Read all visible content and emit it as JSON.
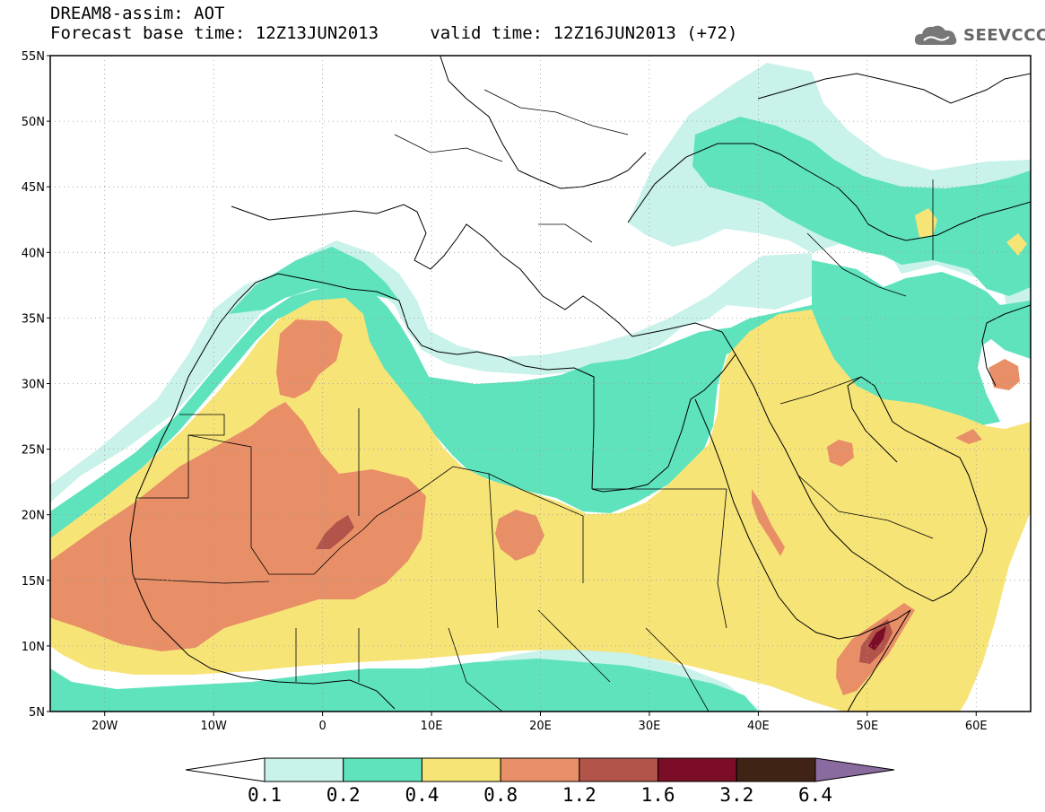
{
  "header": {
    "model_title": "DREAM8-assim: AOT",
    "base_time": "Forecast base time: 12Z13JUN2013",
    "valid_time": "valid time: 12Z16JUN2013 (+72)"
  },
  "logo": {
    "text": "SEEVCCC",
    "icon": "cloud-icon"
  },
  "map": {
    "lon_range": [
      -25,
      65
    ],
    "lat_range": [
      5,
      55
    ],
    "lat_labels": [
      "55N",
      "50N",
      "45N",
      "40N",
      "35N",
      "30N",
      "25N",
      "20N",
      "15N",
      "10N",
      "5N"
    ],
    "lon_labels": [
      "20W",
      "10W",
      "0",
      "10E",
      "20E",
      "30E",
      "40E",
      "50E",
      "60E"
    ],
    "gridlines": "dotted",
    "ocean_color": "#ffffff",
    "land_outline_color": "#000000"
  },
  "colorbar": {
    "labels": [
      "0.1",
      "0.2",
      "0.4",
      "0.8",
      "1.2",
      "1.6",
      "3.2",
      "6.4"
    ],
    "colors": [
      "#c8f2ea",
      "#5ee3bd",
      "#f7e477",
      "#e98f68",
      "#b2544a",
      "#7b0d26",
      "#3f2314",
      "#8a6b9f"
    ],
    "extend": "both"
  }
}
